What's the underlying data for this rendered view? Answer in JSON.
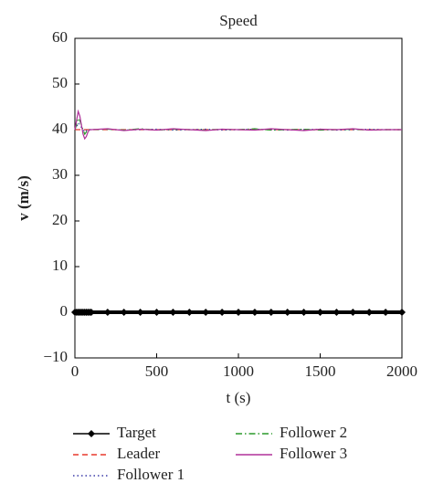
{
  "chart_data": {
    "type": "line",
    "title": "Speed",
    "x_label": "t (s)",
    "y_label": "v (m/s)",
    "x": [
      0,
      10,
      20,
      30,
      40,
      50,
      60,
      70,
      80,
      90,
      100,
      200,
      300,
      400,
      500,
      600,
      700,
      800,
      900,
      1000,
      1100,
      1200,
      1300,
      1400,
      1500,
      1600,
      1700,
      1800,
      1900,
      2000
    ],
    "xlim": [
      0,
      2000
    ],
    "xticks": [
      0,
      500,
      1000,
      1500,
      2000
    ],
    "ylim": [
      -10,
      60
    ],
    "yticks": [
      {
        "value": -10,
        "label": "−10"
      },
      0,
      10,
      20,
      30,
      40,
      50,
      60
    ],
    "series": [
      {
        "name": "Target",
        "color": "#000000",
        "style": "marker",
        "values": [
          0,
          0,
          0,
          0,
          0,
          0,
          0,
          0,
          0,
          0,
          0,
          0,
          0,
          0,
          0,
          0,
          0,
          0,
          0,
          0,
          0,
          0,
          0,
          0,
          0,
          0,
          0,
          0,
          0,
          0
        ]
      },
      {
        "name": "Leader",
        "color": "#e8392b",
        "style": "dashed",
        "values": [
          40,
          40,
          40,
          40,
          40,
          40,
          40,
          40,
          40,
          40,
          40,
          40,
          40,
          40,
          40,
          40,
          40,
          40,
          40,
          40,
          40,
          40,
          40,
          40,
          40,
          40,
          40,
          40,
          40,
          40
        ]
      },
      {
        "name": "Follower 1",
        "color": "#3a3aa8",
        "style": "dotted",
        "values": [
          40,
          40.5,
          41.5,
          41,
          40.5,
          40,
          39.5,
          39.8,
          40,
          40,
          40,
          40.1,
          39.9,
          40,
          40.1,
          39.9,
          40,
          40.1,
          39.9,
          40,
          40.1,
          40,
          39.9,
          40,
          40.1,
          39.9,
          40,
          40.1,
          40,
          40
        ]
      },
      {
        "name": "Follower 2",
        "color": "#2a9a2a",
        "style": "dashdot",
        "values": [
          40,
          41,
          42.5,
          42,
          41,
          40,
          39,
          39.5,
          40,
          40,
          40,
          40.1,
          39.9,
          40.2,
          39.9,
          40.1,
          40,
          39.9,
          40.1,
          40,
          40.2,
          39.9,
          40,
          40.1,
          39.9,
          40,
          40.1,
          39.9,
          40,
          40
        ]
      },
      {
        "name": "Follower 3",
        "color": "#b0309a",
        "style": "solid",
        "values": [
          40,
          42,
          44,
          43,
          41,
          39,
          38,
          38.5,
          39.5,
          40,
          40,
          40.2,
          39.8,
          40.1,
          39.9,
          40.2,
          40,
          39.8,
          40.1,
          40,
          39.9,
          40.2,
          40,
          39.8,
          40.1,
          40,
          40.2,
          39.9,
          40,
          40
        ]
      }
    ]
  }
}
